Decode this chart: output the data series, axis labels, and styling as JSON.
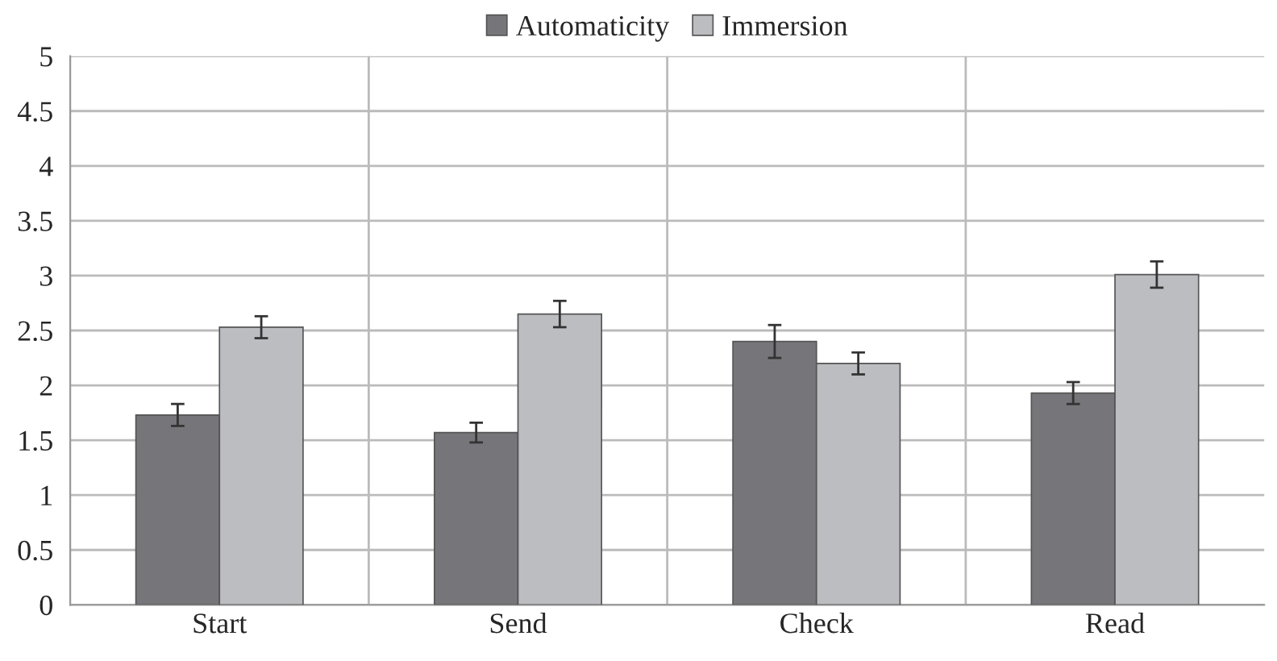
{
  "chart_data": {
    "type": "bar",
    "categories": [
      "Start",
      "Send",
      "Check",
      "Read"
    ],
    "series": [
      {
        "name": "Automaticity",
        "color": "#76767a",
        "values": [
          1.73,
          1.57,
          2.4,
          1.93
        ],
        "errors": [
          0.1,
          0.09,
          0.15,
          0.1
        ]
      },
      {
        "name": "Immersion",
        "color": "#bcbdc1",
        "values": [
          2.53,
          2.65,
          2.2,
          3.01
        ],
        "errors": [
          0.1,
          0.12,
          0.1,
          0.12
        ]
      }
    ],
    "ylim": [
      0,
      5
    ],
    "yticks": [
      0,
      0.5,
      1,
      1.5,
      2,
      2.5,
      3,
      3.5,
      4,
      4.5,
      5
    ],
    "grid": true,
    "legend": "top"
  }
}
